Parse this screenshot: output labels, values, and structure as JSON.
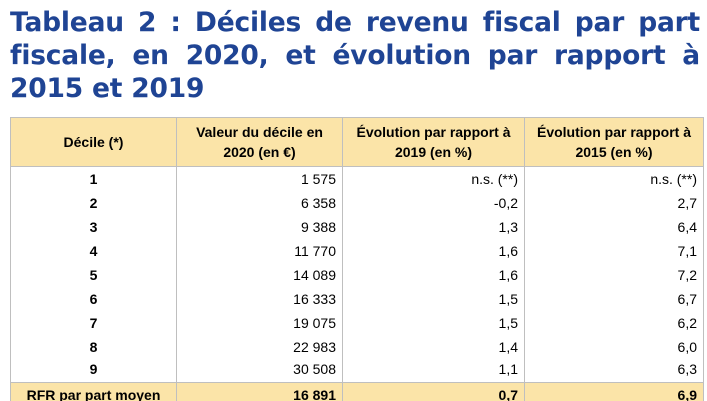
{
  "title": "Tableau 2 : Déciles de revenu fiscal par part fiscale, en 2020, et évolution par rapport à 2015 et 2019",
  "table": {
    "headers": [
      "Décile (*)",
      "Valeur du décile en 2020 (en €)",
      "Évolution par rapport à 2019 (en %)",
      "Évolution par rapport à 2015 (en %)"
    ],
    "rows": [
      [
        "1",
        "1 575",
        "n.s. (**)",
        "n.s. (**)"
      ],
      [
        "2",
        "6 358",
        "-0,2",
        "2,7"
      ],
      [
        "3",
        "9 388",
        "1,3",
        "6,4"
      ],
      [
        "4",
        "11 770",
        "1,6",
        "7,1"
      ],
      [
        "5",
        "14 089",
        "1,6",
        "7,2"
      ],
      [
        "6",
        "16 333",
        "1,5",
        "6,7"
      ],
      [
        "7",
        "19 075",
        "1,5",
        "6,2"
      ],
      [
        "8",
        "22 983",
        "1,4",
        "6,0"
      ],
      [
        "9",
        "30 508",
        "1,1",
        "6,3"
      ]
    ],
    "footer": [
      "RFR par part moyen",
      "16 891",
      "0,7",
      "6,9"
    ]
  },
  "colors": {
    "title": "#1f4494",
    "header_bg": "#fbe4a8",
    "border": "#bfbfbf"
  }
}
